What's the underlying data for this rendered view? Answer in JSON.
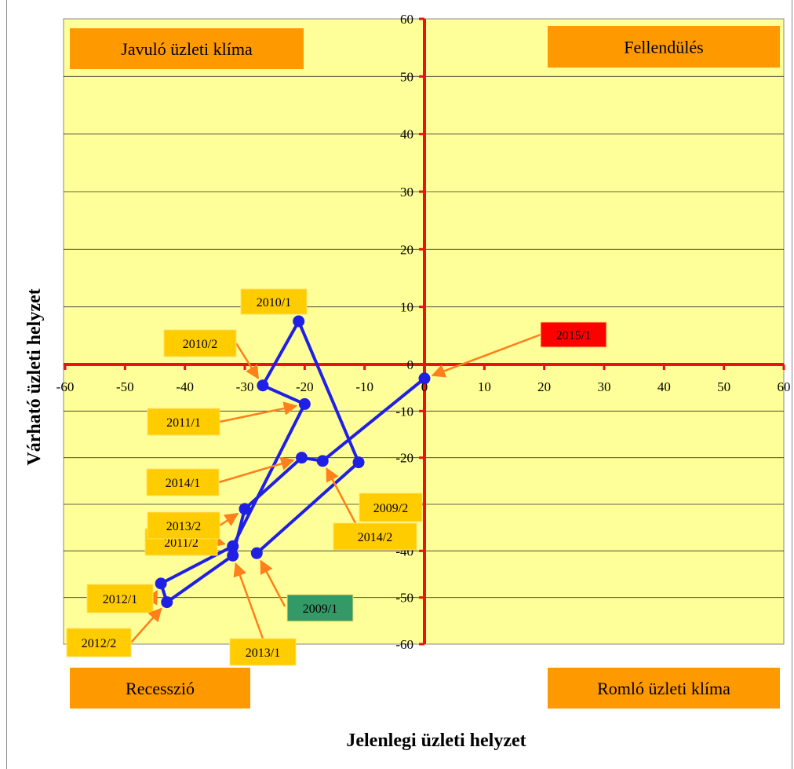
{
  "chart_data": {
    "type": "scatter",
    "xlabel": "Jelenlegi üzleti helyzet",
    "ylabel": "Várható üzleti helyzet",
    "xlim": [
      -60,
      60
    ],
    "ylim": [
      -60,
      60
    ],
    "xticks": [
      -60,
      -50,
      -40,
      -30,
      -20,
      -10,
      0,
      10,
      20,
      30,
      40,
      50,
      60
    ],
    "yticks": [
      60,
      50,
      40,
      30,
      20,
      10,
      0,
      -10,
      -20,
      -30,
      -40,
      -50,
      -60
    ],
    "grid": true,
    "quadrant_labels": {
      "top_left": "Javuló üzleti klíma",
      "top_right": "Fellendülés",
      "bottom_left": "Recesszió",
      "bottom_right": "Romló üzleti klíma"
    },
    "series": [
      {
        "points": [
          {
            "label": "2009/1",
            "x": -28,
            "y": -40.5
          },
          {
            "label": "2009/2",
            "x": -11,
            "y": -21
          },
          {
            "label": "2010/1",
            "x": -21,
            "y": 7.5
          },
          {
            "label": "2010/2",
            "x": -27,
            "y": -4.5
          },
          {
            "label": "2011/1",
            "x": -20,
            "y": -8.5
          },
          {
            "label": "2011/2",
            "x": -32,
            "y": -39
          },
          {
            "label": "2012/1",
            "x": -44,
            "y": -47
          },
          {
            "label": "2012/2",
            "x": -43,
            "y": -51
          },
          {
            "label": "2013/1",
            "x": -32,
            "y": -41
          },
          {
            "label": "2013/2",
            "x": -30,
            "y": -31
          },
          {
            "label": "2014/1",
            "x": -20.5,
            "y": -20
          },
          {
            "label": "2014/2",
            "x": -17,
            "y": -20.7
          },
          {
            "label": "2015/1",
            "x": 0,
            "y": -3
          }
        ]
      }
    ],
    "colors": {
      "plot_bg": "#ffff99",
      "line": "#1f1fe6",
      "axis": "#ee1111",
      "quadrant_box": "#ff9900",
      "annotation_box": "#ffcc00",
      "annotation_arrow": "#ff7f1a",
      "highlight_2015": "#ff0000",
      "highlight_2009_1": "#339966"
    }
  }
}
